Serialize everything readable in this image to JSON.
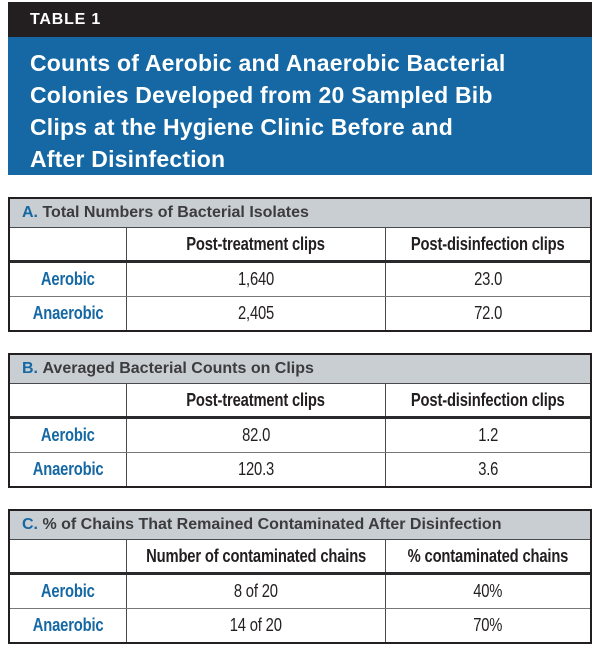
{
  "page": {
    "tab_label": "TABLE 1",
    "title_lines": [
      "Counts of Aerobic and Anaerobic Bacterial",
      "Colonies Developed from 20 Sampled Bib",
      "Clips at the Hygiene Clinic Before and",
      "After Disinfection"
    ]
  },
  "colors": {
    "tab-black": "#231f20",
    "banner-blue": "#1568a3",
    "brand-blue": "#1568a3",
    "section-gray": "#c9ced3"
  },
  "chart_data": [
    {
      "type": "table",
      "title": "A. Total Numbers of Bacterial Isolates",
      "columns": [
        "",
        "Post-treatment clips",
        "Post-disinfection clips"
      ],
      "rows": [
        [
          "Aerobic",
          "1,640",
          "23.0"
        ],
        [
          "Anaerobic",
          "2,405",
          "72.0"
        ]
      ]
    },
    {
      "type": "table",
      "title": "B. Averaged Bacterial Counts on Clips",
      "columns": [
        "",
        "Post-treatment clips",
        "Post-disinfection clips"
      ],
      "rows": [
        [
          "Aerobic",
          "82.0",
          "1.2"
        ],
        [
          "Anaerobic",
          "120.3",
          "3.6"
        ]
      ]
    },
    {
      "type": "table",
      "title": "C. % of Chains That Remained Contaminated After Disinfection",
      "columns": [
        "",
        "Number of contaminated chains",
        "% contaminated chains"
      ],
      "rows": [
        [
          "Aerobic",
          "8 of 20",
          "40%"
        ],
        [
          "Anaerobic",
          "14 of 20",
          "70%"
        ]
      ]
    }
  ],
  "tables": {
    "a": {
      "letter": "A. ",
      "title": "Total Numbers of Bacterial Isolates",
      "col2": "Post-treatment clips",
      "col3": "Post-disinfection clips",
      "rows": [
        {
          "label": "Aerobic",
          "v1": "1,640",
          "v2": "23.0"
        },
        {
          "label": "Anaerobic",
          "v1": "2,405",
          "v2": "72.0"
        }
      ]
    },
    "b": {
      "letter": "B. ",
      "title": "Averaged Bacterial Counts on Clips",
      "col2": "Post-treatment clips",
      "col3": "Post-disinfection clips",
      "rows": [
        {
          "label": "Aerobic",
          "v1": "82.0",
          "v2": "1.2"
        },
        {
          "label": "Anaerobic",
          "v1": "120.3",
          "v2": "3.6"
        }
      ]
    },
    "c": {
      "letter": "C. ",
      "title": "% of Chains That Remained Contaminated After Disinfection",
      "col2": "Number of contaminated chains",
      "col3": "% contaminated chains",
      "rows": [
        {
          "label": "Aerobic",
          "v1": "8 of 20",
          "v2": "40%"
        },
        {
          "label": "Anaerobic",
          "v1": "14 of 20",
          "v2": "70%"
        }
      ]
    }
  }
}
